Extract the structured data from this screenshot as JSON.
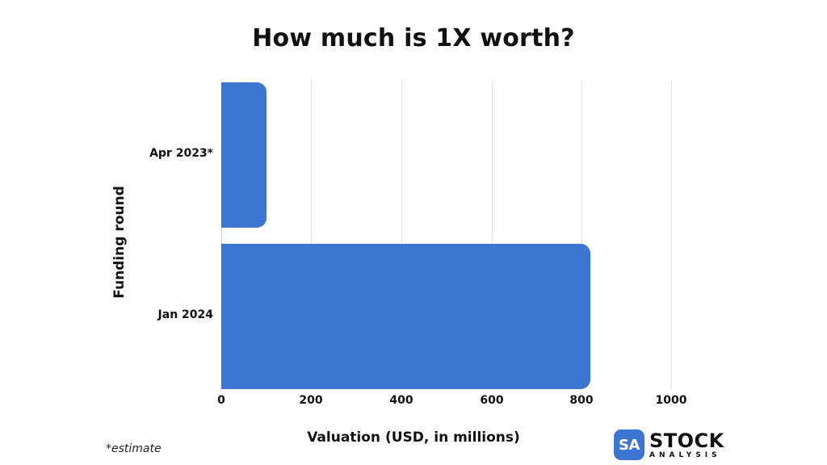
{
  "chart_data": {
    "type": "bar",
    "orientation": "horizontal",
    "title": "How much is 1X worth?",
    "xlabel": "Valuation (USD, in millions)",
    "ylabel": "Funding round",
    "categories": [
      "Apr 2023*",
      "Jan 2024"
    ],
    "values": [
      100,
      820
    ],
    "xlim": [
      0,
      1000
    ],
    "xticks": [
      "0",
      "200",
      "400",
      "600",
      "800",
      "1000"
    ],
    "grid": true,
    "legend": null,
    "bar_color": "#3d75d3",
    "annotation": "*estimate"
  },
  "footer": {
    "note": "*estimate",
    "logo_badge": "SA",
    "logo_main": "STOCK",
    "logo_sub": "ANALYSIS"
  }
}
